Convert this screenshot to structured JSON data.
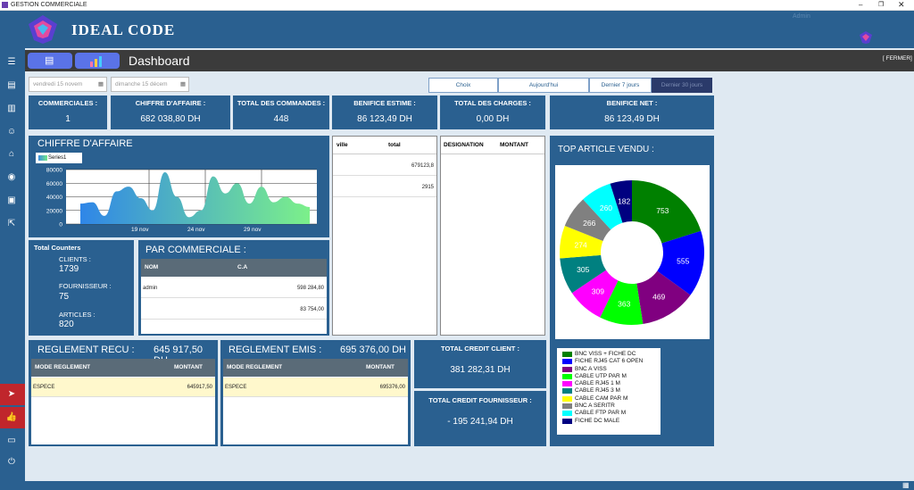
{
  "window": {
    "title": "GESTION COMMERCIALE",
    "user": "Admin"
  },
  "brand": {
    "name": "IDEAL CODE"
  },
  "topbar": {
    "title": "Dashboard",
    "close": "[ FERMER]"
  },
  "dates": {
    "from": "vendredi 15 novem",
    "to": "dimanche 15 décem"
  },
  "filters": [
    "Choix",
    "Aujourd'hui",
    "Dernier 7 jours",
    "Dernier 30 jours"
  ],
  "stats": [
    {
      "label": "COMMERCIALES :",
      "value": "1"
    },
    {
      "label": "CHIFFRE D'AFFAIRE :",
      "value": "682 038,80 DH"
    },
    {
      "label": "TOTAL DES COMMANDES :",
      "value": "448"
    },
    {
      "label": "BENIFICE ESTIME :",
      "value": "86 123,49 DH"
    },
    {
      "label": "TOTAL DES CHARGES :",
      "value": "0,00 DH"
    },
    {
      "label": "BENIFICE NET :",
      "value": "86 123,49 DH"
    }
  ],
  "ca_panel": {
    "title": "CHIFFRE D'AFFAIRE",
    "legend": "Series1"
  },
  "chart_data": {
    "type": "area",
    "series": [
      {
        "name": "Series1",
        "values": [
          30000,
          32000,
          12000,
          48000,
          55000,
          38000,
          20000,
          76000,
          40000,
          10000,
          20000,
          70000,
          45000,
          60000,
          30000,
          55000,
          32000,
          40000,
          30000,
          25000
        ]
      }
    ],
    "yticks": [
      "80000",
      "60000",
      "40000",
      "20000",
      "0"
    ],
    "xticks": [
      "19 nov",
      "24 nov",
      "29 nov"
    ],
    "ylim": [
      0,
      80000
    ]
  },
  "ville_table": {
    "headers": [
      "ville",
      "total"
    ],
    "rows": [
      [
        "",
        "679123,8"
      ],
      [
        "",
        "2915"
      ]
    ]
  },
  "designation_table": {
    "headers": [
      "DESIGNATION",
      "MONTANT"
    ]
  },
  "top_article": {
    "title": "TOP ARTICLE  VENDU :"
  },
  "pie_data": {
    "type": "pie",
    "values": [
      753,
      555,
      469,
      363,
      309,
      305,
      274,
      266,
      260,
      182
    ],
    "labels": [
      "BNC VISS + FICHE DC",
      "FICHE RJ45 CAT 6 OPEN",
      "BNC A VISS",
      "CABLE UTP PAR M",
      "CABLE RJ45  1 M",
      "CABLE RJ45  3 M",
      "CABLE CAM PAR M",
      "BNC A SERITR",
      "CABLE FTP PAR M",
      "FICHE DC MALE"
    ],
    "colors": [
      "#008000",
      "#0000ff",
      "#800080",
      "#00ff00",
      "#ff00ff",
      "#008080",
      "#ffff00",
      "#808080",
      "#00ffff",
      "#000080"
    ]
  },
  "counters": {
    "title": "Total Counters",
    "clients_label": "CLIENTS :",
    "clients": "1739",
    "fourn_label": "FOURNISSEUR :",
    "fourn": "75",
    "articles_label": "ARTICLES :",
    "articles": "820"
  },
  "par_commerciale": {
    "title": "PAR COMMERCIALE :",
    "headers": [
      "NOM",
      "C.A"
    ],
    "rows": [
      [
        "admin",
        "598 284,80"
      ],
      [
        "",
        "83 754,00"
      ]
    ]
  },
  "reglement_recu": {
    "title": "REGLEMENT RECU :",
    "total": "645 917,50 DH",
    "headers": [
      "MODE REGLEMENT",
      "MONTANT"
    ],
    "rows": [
      [
        "ESPECE",
        "645917,50"
      ]
    ]
  },
  "reglement_emis": {
    "title": "REGLEMENT EMIS :",
    "total": "695 376,00 DH",
    "headers": [
      "MODE REGLEMENT",
      "MONTANT"
    ],
    "rows": [
      [
        "ESPECE",
        "695376,00"
      ]
    ]
  },
  "credit_client": {
    "label": "TOTAL CREDIT CLIENT :",
    "value": "381 282,31 DH"
  },
  "credit_fourn": {
    "label": "TOTAL CREDIT FOURNISSEUR :",
    "value": "-  195 241,94 DH"
  }
}
